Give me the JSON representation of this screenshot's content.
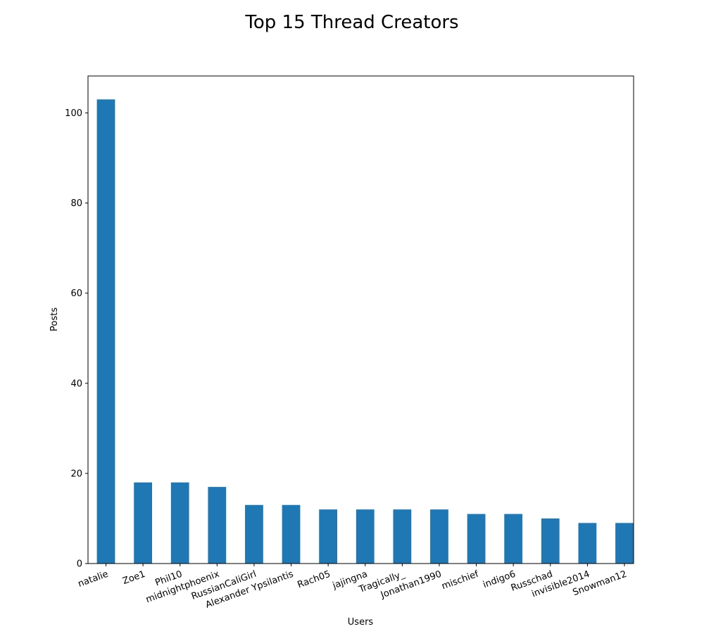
{
  "chart_data": {
    "type": "bar",
    "title": "Top 15 Thread Creators",
    "xlabel": "Users",
    "ylabel": "Posts",
    "categories": [
      "natalie",
      "Zoe1",
      "Phil10",
      "midnightphoenix",
      "RussianCaliGirl",
      "Alexander Ypsilantis",
      "Rach05",
      "jajingna",
      "Tragically_",
      "Jonathan1990",
      "mischief",
      "indigo6",
      "Russchad",
      "invisible2014",
      "Snowman12"
    ],
    "values": [
      103,
      18,
      18,
      17,
      13,
      13,
      12,
      12,
      12,
      12,
      11,
      11,
      10,
      9,
      9
    ],
    "ylim": [
      0,
      108.2
    ],
    "yticks": [
      0,
      20,
      40,
      60,
      80,
      100
    ],
    "grid": false,
    "legend": "none",
    "bar_color": "#1f77b4"
  }
}
